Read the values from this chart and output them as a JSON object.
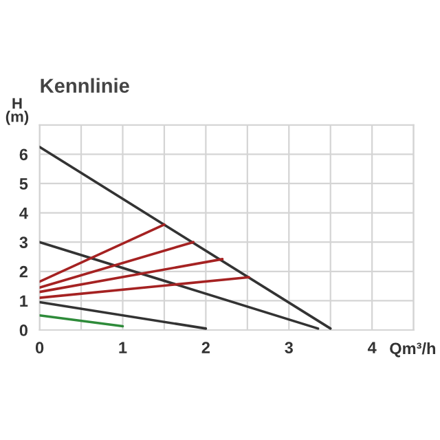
{
  "chart_data": {
    "type": "line",
    "title": "Kennlinie",
    "xlabel": "Qm³/h",
    "ylabel": "H\n(m)",
    "xlim": [
      0,
      4.5
    ],
    "ylim": [
      0,
      7
    ],
    "xticks": [
      0,
      {
        "value": 0.5,
        "label": null
      },
      1,
      {
        "value": 1.5,
        "label": null
      },
      2,
      {
        "value": 2.5,
        "label": null
      },
      3,
      {
        "value": 3.5,
        "label": null
      },
      4,
      {
        "value": 4.5,
        "label": null
      }
    ],
    "yticks": [
      0,
      1,
      2,
      3,
      4,
      5,
      6,
      {
        "value": 7,
        "label": null
      }
    ],
    "grid": true,
    "marker": "none",
    "line_style": "solid",
    "series": [
      {
        "color": "#333333",
        "x": [
          0,
          3.5
        ],
        "values": [
          6.25,
          0.05
        ]
      },
      {
        "color": "#333333",
        "x": [
          0,
          3.35
        ],
        "values": [
          3.0,
          0.05
        ]
      },
      {
        "color": "#333333",
        "x": [
          0,
          2.0
        ],
        "values": [
          0.95,
          0.05
        ]
      },
      {
        "color": "#2e8b3a",
        "x": [
          0,
          1.0
        ],
        "values": [
          0.5,
          0.13
        ]
      },
      {
        "color": "#a52222",
        "x": [
          0,
          1.5
        ],
        "values": [
          1.65,
          3.6
        ]
      },
      {
        "color": "#a52222",
        "x": [
          0,
          1.85
        ],
        "values": [
          1.45,
          3.0
        ]
      },
      {
        "color": "#a52222",
        "x": [
          0,
          2.2
        ],
        "values": [
          1.3,
          2.42
        ]
      },
      {
        "color": "#a52222",
        "x": [
          0,
          2.52
        ],
        "values": [
          1.1,
          1.8
        ]
      }
    ]
  }
}
